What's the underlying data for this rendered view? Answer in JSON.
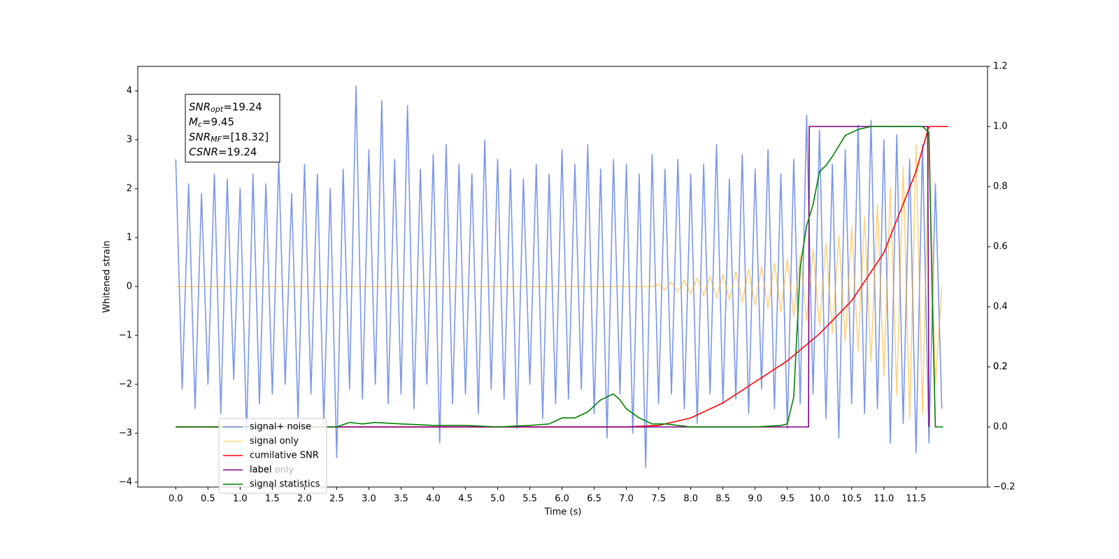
{
  "chart_data": {
    "type": "line",
    "xlabel": "Time (s)",
    "ylabel": "Whitened strain",
    "xlim": [
      -0.59,
      12.61
    ],
    "ylim": [
      -4.1,
      4.5
    ],
    "y2lim": [
      -0.2,
      1.2
    ],
    "xticks": [
      {
        "value": 0,
        "label": "0.0"
      },
      {
        "value": 0.5,
        "label": "0.5"
      },
      {
        "value": 1,
        "label": "1.0"
      },
      {
        "value": 1.5,
        "label": "1.5"
      },
      {
        "value": 2,
        "label": "2.0"
      },
      {
        "value": 2.5,
        "label": "2.5"
      },
      {
        "value": 3,
        "label": "3.0"
      },
      {
        "value": 3.5,
        "label": "3.5"
      },
      {
        "value": 4,
        "label": "4.0"
      },
      {
        "value": 4.5,
        "label": "4.5"
      },
      {
        "value": 5,
        "label": "5.0"
      },
      {
        "value": 5.5,
        "label": "5.5"
      },
      {
        "value": 6,
        "label": "6.0"
      },
      {
        "value": 6.5,
        "label": "6.5"
      },
      {
        "value": 7,
        "label": "7.0"
      },
      {
        "value": 7.5,
        "label": "7.5"
      },
      {
        "value": 8,
        "label": "8.0"
      },
      {
        "value": 8.5,
        "label": "8.5"
      },
      {
        "value": 9,
        "label": "9.0"
      },
      {
        "value": 9.5,
        "label": "9.5"
      },
      {
        "value": 10,
        "label": "10.0"
      },
      {
        "value": 10.5,
        "label": "10.5"
      },
      {
        "value": 11,
        "label": "11.0"
      },
      {
        "value": 11.5,
        "label": "11.5"
      }
    ],
    "yticks": [
      {
        "value": -4,
        "label": "−4"
      },
      {
        "value": -3,
        "label": "−3"
      },
      {
        "value": -2,
        "label": "−2"
      },
      {
        "value": -1,
        "label": "−1"
      },
      0,
      1,
      2,
      3,
      4
    ],
    "y2ticks": [
      {
        "value": -0.2,
        "label": "−0.2"
      },
      {
        "value": 0,
        "label": "0.0"
      },
      0.2,
      0.4,
      0.6,
      0.8,
      {
        "value": 1,
        "label": "1.0"
      },
      0.2,
      1.2
    ],
    "x": [
      0,
      0.1,
      0.2,
      0.3,
      0.4,
      0.5,
      0.6,
      0.7,
      0.8,
      0.9,
      1,
      1.1,
      1.2,
      1.3,
      1.4,
      1.5,
      1.6,
      1.7,
      1.8,
      1.9,
      2,
      2.1,
      2.2,
      2.3,
      2.4,
      2.5,
      2.6,
      2.7,
      2.8,
      2.9,
      3,
      3.1,
      3.2,
      3.3,
      3.4,
      3.5,
      3.6,
      3.7,
      3.8,
      3.9,
      4,
      4.1,
      4.2,
      4.3,
      4.4,
      4.5,
      4.6,
      4.7,
      4.8,
      4.9,
      5,
      5.1,
      5.2,
      5.3,
      5.4,
      5.5,
      5.6,
      5.7,
      5.8,
      5.9,
      6,
      6.1,
      6.2,
      6.3,
      6.4,
      6.5,
      6.6,
      6.7,
      6.8,
      6.9,
      7,
      7.1,
      7.2,
      7.3,
      7.4,
      7.5,
      7.6,
      7.7,
      7.8,
      7.9,
      8,
      8.1,
      8.2,
      8.3,
      8.4,
      8.5,
      8.6,
      8.7,
      8.8,
      8.9,
      9,
      9.1,
      9.2,
      9.3,
      9.4,
      9.5,
      9.6,
      9.7,
      9.8,
      9.9,
      10,
      10.1,
      10.2,
      10.3,
      10.4,
      10.5,
      10.6,
      10.7,
      10.8,
      10.9,
      11,
      11.1,
      11.2,
      11.3,
      11.4,
      11.5,
      11.6,
      11.7,
      11.8,
      11.9
    ],
    "series": [
      {
        "name": "signal+ noise",
        "color": "#4169e1",
        "opacity": 0.7,
        "axis": "y",
        "values": [
          2.6,
          -2.1,
          2.1,
          -2.5,
          1.9,
          -2.0,
          2.3,
          -2.6,
          2.2,
          -1.9,
          2.0,
          -3.0,
          2.3,
          -2.4,
          2.1,
          -2.2,
          2.6,
          -2.0,
          1.9,
          -2.7,
          2.5,
          -2.2,
          2.3,
          -2.8,
          2.0,
          -3.5,
          2.4,
          -2.1,
          4.1,
          -2.3,
          2.8,
          -2.0,
          3.8,
          -2.4,
          2.6,
          -2.2,
          3.7,
          -2.5,
          2.4,
          -2.0,
          2.7,
          -3.2,
          2.9,
          -2.4,
          2.5,
          -2.2,
          2.3,
          -2.6,
          3.0,
          -2.1,
          2.6,
          -2.3,
          2.4,
          -2.9,
          2.2,
          -2.0,
          2.5,
          -2.7,
          2.3,
          -2.4,
          2.8,
          -2.3,
          2.5,
          -2.1,
          2.9,
          -2.6,
          2.4,
          -3.1,
          2.6,
          -2.2,
          2.5,
          -3.0,
          2.3,
          -3.7,
          2.7,
          -2.4,
          2.4,
          -2.2,
          2.6,
          -2.5,
          2.3,
          -2.8,
          2.5,
          -2.2,
          2.9,
          -2.4,
          2.2,
          -2.3,
          2.7,
          -2.6,
          2.4,
          -2.1,
          2.8,
          -2.5,
          2.3,
          -2.9,
          2.6,
          -2.4,
          3.5,
          -2.2,
          3.2,
          -2.7,
          2.5,
          -3.1,
          2.8,
          -2.4,
          3.3,
          -2.6,
          3.4,
          -2.5,
          3.0,
          -3.2,
          3.1,
          -2.8,
          2.6,
          -3.4,
          2.9,
          -3.2,
          2.1,
          -2.5
        ]
      },
      {
        "name": "signal only",
        "color": "#ffa500",
        "opacity": 0.5,
        "axis": "y",
        "values": [
          0,
          0,
          0,
          0,
          0,
          0,
          0,
          0,
          0,
          0,
          0,
          0,
          0,
          0,
          0,
          0,
          0,
          0,
          0,
          0,
          0,
          0,
          0,
          0,
          0,
          0,
          0,
          0,
          0,
          0,
          0,
          0,
          0,
          0,
          0,
          0,
          0,
          0,
          0,
          0,
          0,
          0,
          0,
          0,
          0,
          0,
          0,
          0,
          0,
          0,
          0,
          0,
          0,
          0,
          0,
          0,
          0,
          0,
          0,
          0,
          0,
          0,
          0,
          0,
          0,
          0,
          0,
          0,
          0,
          0,
          0,
          0,
          0,
          0,
          0,
          0.05,
          -0.07,
          0.09,
          -0.11,
          0.13,
          -0.15,
          0.17,
          -0.19,
          0.21,
          -0.23,
          0.25,
          -0.27,
          0.3,
          -0.32,
          0.35,
          -0.38,
          0.41,
          -0.44,
          0.48,
          -0.52,
          0.56,
          -0.6,
          0.65,
          -0.7,
          0.76,
          -0.82,
          0.89,
          -0.96,
          1.04,
          -1.12,
          1.21,
          -1.31,
          1.42,
          -1.54,
          1.68,
          -1.84,
          2.02,
          -2.22,
          2.45,
          -2.7,
          2.9,
          -2.6,
          3.0,
          -2.0,
          0
        ]
      },
      {
        "name": "cumilative SNR",
        "color": "#ff0000",
        "opacity": 1,
        "axis": "y2",
        "x": [
          0,
          7,
          7.5,
          8,
          8.5,
          9,
          9.5,
          10,
          10.5,
          11,
          11.5,
          11.7,
          11.72,
          12
        ],
        "values": [
          0,
          0,
          0.005,
          0.03,
          0.08,
          0.15,
          0.22,
          0.31,
          0.42,
          0.58,
          0.85,
          1.0,
          1.0,
          1.0
        ]
      },
      {
        "name": "label",
        "color": "#800080",
        "opacity": 1,
        "axis": "y2",
        "x": [
          0,
          9.83,
          9.84,
          11.68,
          11.7
        ],
        "values": [
          0,
          0,
          1,
          1,
          0
        ]
      },
      {
        "name": "signal statistics",
        "color": "#008000",
        "opacity": 1,
        "axis": "y2",
        "x": [
          0,
          2.5,
          2.7,
          2.9,
          3.1,
          3.5,
          4.0,
          4.5,
          5.0,
          5.5,
          5.8,
          6.0,
          6.2,
          6.4,
          6.6,
          6.8,
          6.9,
          7.0,
          7.2,
          7.4,
          7.6,
          8.0,
          9.0,
          9.4,
          9.5,
          9.6,
          9.7,
          9.8,
          9.9,
          10.0,
          10.1,
          10.2,
          10.4,
          10.6,
          10.8,
          11.6,
          11.7,
          11.75,
          11.8,
          11.92
        ],
        "values": [
          0,
          0,
          0.015,
          0.01,
          0.015,
          0.01,
          0.005,
          0.005,
          0,
          0.005,
          0.01,
          0.03,
          0.03,
          0.05,
          0.09,
          0.11,
          0.09,
          0.06,
          0.03,
          0.01,
          0.01,
          0,
          0,
          0.005,
          0.01,
          0.1,
          0.53,
          0.67,
          0.74,
          0.85,
          0.87,
          0.9,
          0.97,
          0.99,
          1.0,
          1.0,
          0.98,
          0.45,
          0,
          0
        ]
      }
    ],
    "legend_overlay_text": "label only",
    "annotation": [
      {
        "main": "SNR",
        "sub": "opt",
        "rest": "=19.24"
      },
      {
        "main": "M",
        "sub": "c",
        "rest": "=9.45"
      },
      {
        "main": "SNR",
        "sub": "MF",
        "rest": "=[18.32]"
      },
      {
        "main": "CSNR",
        "sub": "",
        "rest": "=19.24"
      }
    ]
  }
}
